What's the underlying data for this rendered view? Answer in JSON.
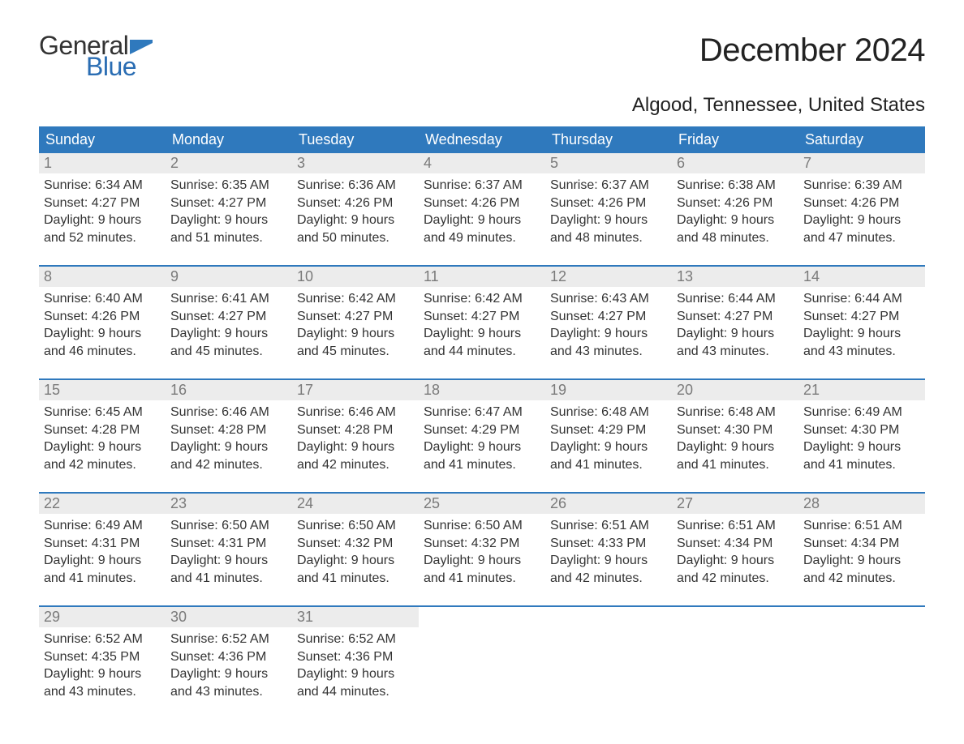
{
  "logo": {
    "general": "General",
    "blue": "Blue",
    "flag_color": "#2f79bd"
  },
  "title": "December 2024",
  "location": "Algood, Tennessee, United States",
  "colors": {
    "header_bg": "#2f79bd",
    "header_text": "#ffffff",
    "daynum_bg": "#ececec",
    "daynum_text": "#7a7a7a",
    "body_text": "#333333",
    "week_border": "#2f79bd",
    "page_bg": "#ffffff"
  },
  "typography": {
    "title_fontsize": 40,
    "location_fontsize": 24,
    "dow_fontsize": 18,
    "daynum_fontsize": 18,
    "body_fontsize": 16
  },
  "days_of_week": [
    "Sunday",
    "Monday",
    "Tuesday",
    "Wednesday",
    "Thursday",
    "Friday",
    "Saturday"
  ],
  "weeks": [
    [
      {
        "n": "1",
        "sunrise": "Sunrise: 6:34 AM",
        "sunset": "Sunset: 4:27 PM",
        "d1": "Daylight: 9 hours",
        "d2": "and 52 minutes."
      },
      {
        "n": "2",
        "sunrise": "Sunrise: 6:35 AM",
        "sunset": "Sunset: 4:27 PM",
        "d1": "Daylight: 9 hours",
        "d2": "and 51 minutes."
      },
      {
        "n": "3",
        "sunrise": "Sunrise: 6:36 AM",
        "sunset": "Sunset: 4:26 PM",
        "d1": "Daylight: 9 hours",
        "d2": "and 50 minutes."
      },
      {
        "n": "4",
        "sunrise": "Sunrise: 6:37 AM",
        "sunset": "Sunset: 4:26 PM",
        "d1": "Daylight: 9 hours",
        "d2": "and 49 minutes."
      },
      {
        "n": "5",
        "sunrise": "Sunrise: 6:37 AM",
        "sunset": "Sunset: 4:26 PM",
        "d1": "Daylight: 9 hours",
        "d2": "and 48 minutes."
      },
      {
        "n": "6",
        "sunrise": "Sunrise: 6:38 AM",
        "sunset": "Sunset: 4:26 PM",
        "d1": "Daylight: 9 hours",
        "d2": "and 48 minutes."
      },
      {
        "n": "7",
        "sunrise": "Sunrise: 6:39 AM",
        "sunset": "Sunset: 4:26 PM",
        "d1": "Daylight: 9 hours",
        "d2": "and 47 minutes."
      }
    ],
    [
      {
        "n": "8",
        "sunrise": "Sunrise: 6:40 AM",
        "sunset": "Sunset: 4:26 PM",
        "d1": "Daylight: 9 hours",
        "d2": "and 46 minutes."
      },
      {
        "n": "9",
        "sunrise": "Sunrise: 6:41 AM",
        "sunset": "Sunset: 4:27 PM",
        "d1": "Daylight: 9 hours",
        "d2": "and 45 minutes."
      },
      {
        "n": "10",
        "sunrise": "Sunrise: 6:42 AM",
        "sunset": "Sunset: 4:27 PM",
        "d1": "Daylight: 9 hours",
        "d2": "and 45 minutes."
      },
      {
        "n": "11",
        "sunrise": "Sunrise: 6:42 AM",
        "sunset": "Sunset: 4:27 PM",
        "d1": "Daylight: 9 hours",
        "d2": "and 44 minutes."
      },
      {
        "n": "12",
        "sunrise": "Sunrise: 6:43 AM",
        "sunset": "Sunset: 4:27 PM",
        "d1": "Daylight: 9 hours",
        "d2": "and 43 minutes."
      },
      {
        "n": "13",
        "sunrise": "Sunrise: 6:44 AM",
        "sunset": "Sunset: 4:27 PM",
        "d1": "Daylight: 9 hours",
        "d2": "and 43 minutes."
      },
      {
        "n": "14",
        "sunrise": "Sunrise: 6:44 AM",
        "sunset": "Sunset: 4:27 PM",
        "d1": "Daylight: 9 hours",
        "d2": "and 43 minutes."
      }
    ],
    [
      {
        "n": "15",
        "sunrise": "Sunrise: 6:45 AM",
        "sunset": "Sunset: 4:28 PM",
        "d1": "Daylight: 9 hours",
        "d2": "and 42 minutes."
      },
      {
        "n": "16",
        "sunrise": "Sunrise: 6:46 AM",
        "sunset": "Sunset: 4:28 PM",
        "d1": "Daylight: 9 hours",
        "d2": "and 42 minutes."
      },
      {
        "n": "17",
        "sunrise": "Sunrise: 6:46 AM",
        "sunset": "Sunset: 4:28 PM",
        "d1": "Daylight: 9 hours",
        "d2": "and 42 minutes."
      },
      {
        "n": "18",
        "sunrise": "Sunrise: 6:47 AM",
        "sunset": "Sunset: 4:29 PM",
        "d1": "Daylight: 9 hours",
        "d2": "and 41 minutes."
      },
      {
        "n": "19",
        "sunrise": "Sunrise: 6:48 AM",
        "sunset": "Sunset: 4:29 PM",
        "d1": "Daylight: 9 hours",
        "d2": "and 41 minutes."
      },
      {
        "n": "20",
        "sunrise": "Sunrise: 6:48 AM",
        "sunset": "Sunset: 4:30 PM",
        "d1": "Daylight: 9 hours",
        "d2": "and 41 minutes."
      },
      {
        "n": "21",
        "sunrise": "Sunrise: 6:49 AM",
        "sunset": "Sunset: 4:30 PM",
        "d1": "Daylight: 9 hours",
        "d2": "and 41 minutes."
      }
    ],
    [
      {
        "n": "22",
        "sunrise": "Sunrise: 6:49 AM",
        "sunset": "Sunset: 4:31 PM",
        "d1": "Daylight: 9 hours",
        "d2": "and 41 minutes."
      },
      {
        "n": "23",
        "sunrise": "Sunrise: 6:50 AM",
        "sunset": "Sunset: 4:31 PM",
        "d1": "Daylight: 9 hours",
        "d2": "and 41 minutes."
      },
      {
        "n": "24",
        "sunrise": "Sunrise: 6:50 AM",
        "sunset": "Sunset: 4:32 PM",
        "d1": "Daylight: 9 hours",
        "d2": "and 41 minutes."
      },
      {
        "n": "25",
        "sunrise": "Sunrise: 6:50 AM",
        "sunset": "Sunset: 4:32 PM",
        "d1": "Daylight: 9 hours",
        "d2": "and 41 minutes."
      },
      {
        "n": "26",
        "sunrise": "Sunrise: 6:51 AM",
        "sunset": "Sunset: 4:33 PM",
        "d1": "Daylight: 9 hours",
        "d2": "and 42 minutes."
      },
      {
        "n": "27",
        "sunrise": "Sunrise: 6:51 AM",
        "sunset": "Sunset: 4:34 PM",
        "d1": "Daylight: 9 hours",
        "d2": "and 42 minutes."
      },
      {
        "n": "28",
        "sunrise": "Sunrise: 6:51 AM",
        "sunset": "Sunset: 4:34 PM",
        "d1": "Daylight: 9 hours",
        "d2": "and 42 minutes."
      }
    ],
    [
      {
        "n": "29",
        "sunrise": "Sunrise: 6:52 AM",
        "sunset": "Sunset: 4:35 PM",
        "d1": "Daylight: 9 hours",
        "d2": "and 43 minutes."
      },
      {
        "n": "30",
        "sunrise": "Sunrise: 6:52 AM",
        "sunset": "Sunset: 4:36 PM",
        "d1": "Daylight: 9 hours",
        "d2": "and 43 minutes."
      },
      {
        "n": "31",
        "sunrise": "Sunrise: 6:52 AM",
        "sunset": "Sunset: 4:36 PM",
        "d1": "Daylight: 9 hours",
        "d2": "and 44 minutes."
      },
      null,
      null,
      null,
      null
    ]
  ]
}
